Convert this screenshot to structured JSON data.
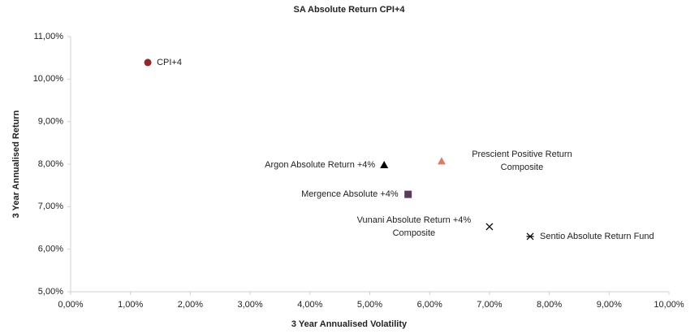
{
  "chart_data": {
    "type": "scatter",
    "title": "SA Absolute Return CPI+4",
    "x_label": "3 Year Annualised Volatility",
    "y_label": "3 Year Annualised Return",
    "xlim": [
      0,
      10
    ],
    "ylim": [
      5,
      11
    ],
    "xticks": [
      {
        "value": 0,
        "label": "0,00%"
      },
      {
        "value": 1,
        "label": "1,00%"
      },
      {
        "value": 2,
        "label": "2,00%"
      },
      {
        "value": 3,
        "label": "3,00%"
      },
      {
        "value": 4,
        "label": "4,00%"
      },
      {
        "value": 5,
        "label": "5,00%"
      },
      {
        "value": 6,
        "label": "6,00%"
      },
      {
        "value": 7,
        "label": "7,00%"
      },
      {
        "value": 8,
        "label": "8,00%"
      },
      {
        "value": 9,
        "label": "9,00%"
      },
      {
        "value": 10,
        "label": "10,00%"
      }
    ],
    "yticks": [
      {
        "value": 5,
        "label": "5,00%"
      },
      {
        "value": 6,
        "label": "6,00%"
      },
      {
        "value": 7,
        "label": "7,00%"
      },
      {
        "value": 8,
        "label": "8,00%"
      },
      {
        "value": 9,
        "label": "9,00%"
      },
      {
        "value": 10,
        "label": "10,00%"
      },
      {
        "value": 11,
        "label": "11,00%"
      }
    ],
    "series": [
      {
        "name": "CPI+4",
        "color": "#8e2a2a",
        "marker": "circle",
        "x": [
          1.29
        ],
        "values": [
          10.39
        ]
      },
      {
        "name": "Argon Absolute Return +4%",
        "color": "#000000",
        "marker": "triangle",
        "x": [
          5.24
        ],
        "values": [
          7.98
        ]
      },
      {
        "name": "Prescient Positive Return Composite",
        "color": "#e07a68",
        "marker": "triangle",
        "x": [
          6.2
        ],
        "values": [
          8.07
        ]
      },
      {
        "name": "Mergence Absolute +4%",
        "color": "#5a3b5e",
        "marker": "square",
        "x": [
          5.64
        ],
        "values": [
          7.29
        ]
      },
      {
        "name": "Vunani Absolute Return +4% Composite",
        "color": "#000000",
        "marker": "x",
        "x": [
          7.0
        ],
        "values": [
          6.53
        ]
      },
      {
        "name": "Sentio Absolute Return Fund",
        "color": "#000000",
        "marker": "asterisk",
        "x": [
          7.68
        ],
        "values": [
          6.3
        ]
      }
    ]
  }
}
